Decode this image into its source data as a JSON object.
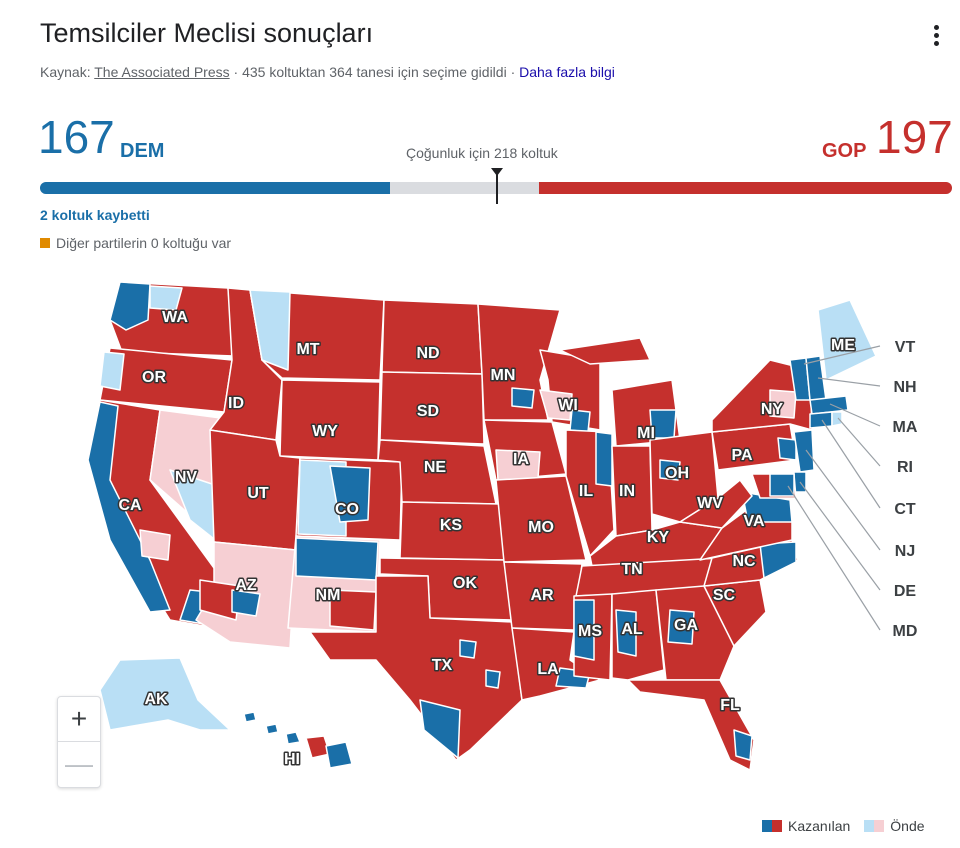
{
  "header": {
    "title": "Temsilciler Meclisi sonuçları",
    "source_prefix": "Kaynak:",
    "source_name": "The Associated Press",
    "source_details": "· 435 koltuktan 364 tanesi için seçime gidildi ·",
    "more_info": "Daha fazla bilgi"
  },
  "results": {
    "dem_count": "167",
    "dem_label": "DEM",
    "gop_label": "GOP",
    "gop_count": "197",
    "majority_label": "Çoğunluk için 218 koltuk",
    "dem_fraction": 0.3839,
    "gop_fraction": 0.4529,
    "majority_fraction": 0.5011,
    "lost_note": "2 koltuk kaybetti",
    "other_note": "Diğer partilerin 0 koltuğu var"
  },
  "colors": {
    "dem_won": "#1a6fa8",
    "gop_won": "#c5302d",
    "dem_leading": "#b9dff5",
    "gop_leading": "#f6cfd3",
    "other": "#e08a00",
    "undecided": "#dadce0"
  },
  "map": {
    "states_labels": [
      "WA",
      "OR",
      "CA",
      "NV",
      "ID",
      "MT",
      "WY",
      "UT",
      "AZ",
      "CO",
      "NM",
      "ND",
      "SD",
      "NE",
      "KS",
      "OK",
      "TX",
      "MN",
      "IA",
      "MO",
      "AR",
      "LA",
      "WI",
      "IL",
      "MI",
      "IN",
      "OH",
      "KY",
      "TN",
      "MS",
      "AL",
      "GA",
      "FL",
      "SC",
      "NC",
      "VA",
      "WV",
      "PA",
      "NY",
      "ME",
      "AK",
      "HI"
    ],
    "callout_labels": [
      "VT",
      "NH",
      "MA",
      "RI",
      "CT",
      "NJ",
      "DE",
      "MD"
    ]
  },
  "zoom": {
    "in": "+",
    "out": "—"
  },
  "legend": {
    "won": "Kazanılan",
    "leading": "Önde"
  }
}
